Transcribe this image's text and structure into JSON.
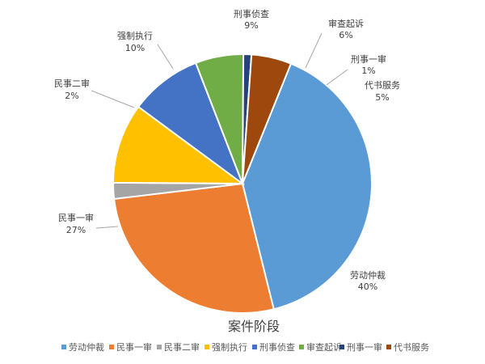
{
  "chart_data": {
    "type": "pie",
    "title": "案件阶段",
    "legend_position": "bottom",
    "slices": [
      {
        "label": "劳动仲裁",
        "value": 40,
        "value_label": "40%",
        "color": "#5b9bd5"
      },
      {
        "label": "民事一审",
        "value": 27,
        "value_label": "27%",
        "color": "#ed7d31"
      },
      {
        "label": "民事二审",
        "value": 2,
        "value_label": "2%",
        "color": "#a5a5a5"
      },
      {
        "label": "强制执行",
        "value": 10,
        "value_label": "10%",
        "color": "#ffc000"
      },
      {
        "label": "刑事侦查",
        "value": 9,
        "value_label": "9%",
        "color": "#4472c4"
      },
      {
        "label": "审查起诉",
        "value": 6,
        "value_label": "6%",
        "color": "#70ad47"
      },
      {
        "label": "刑事一审",
        "value": 1,
        "value_label": "1%",
        "color": "#264478"
      },
      {
        "label": "代书服务",
        "value": 5,
        "value_label": "5%",
        "color": "#9e480e"
      }
    ]
  }
}
